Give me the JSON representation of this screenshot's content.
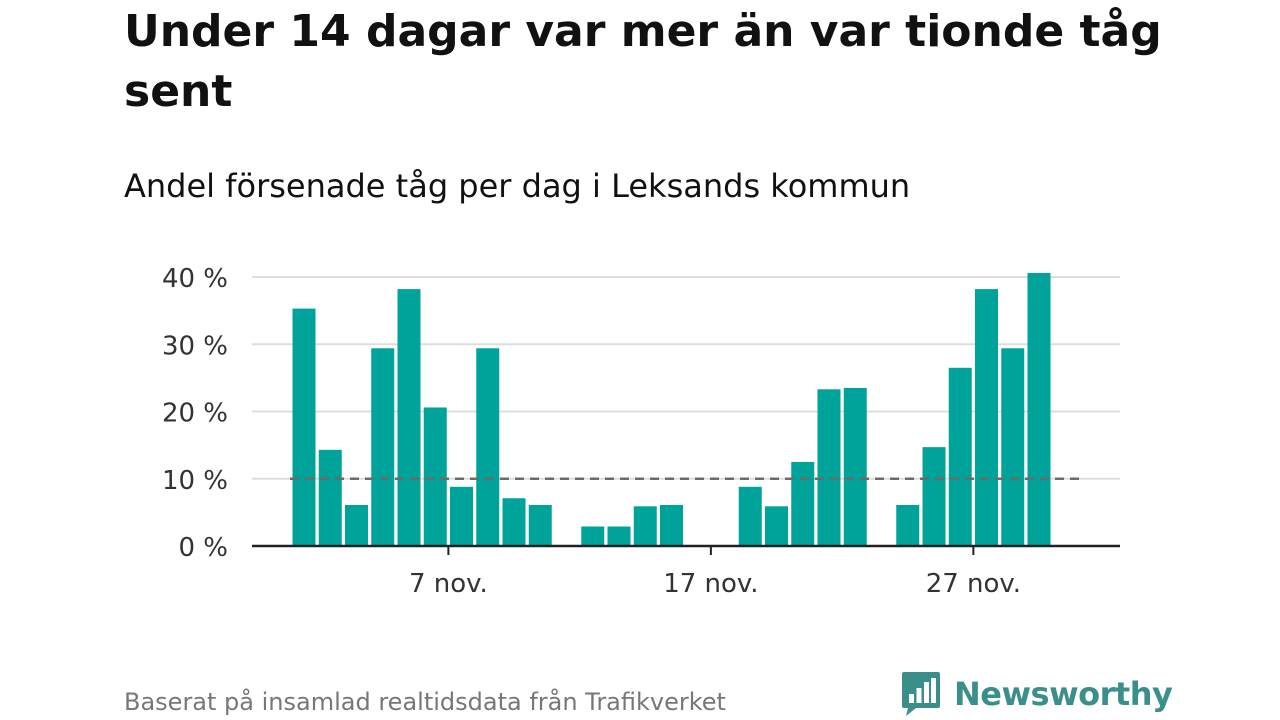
{
  "title": "Under 14 dagar var mer än var tionde tåg sent",
  "subtitle": "Andel försenade tåg per dag i Leksands kommun",
  "footer": "Baserat på insamlad realtidsdata från Trafikverket",
  "brand": {
    "name": "Newsworthy",
    "icon": "newsworthy-logo-icon",
    "color": "#3b8f8a"
  },
  "colors": {
    "bar": "#00a39a",
    "grid": "#dddddd",
    "reference": "#6b6b6b",
    "axis": "#222222"
  },
  "chart_data": {
    "type": "bar",
    "title": "",
    "xlabel": "",
    "ylabel": "",
    "ylim": [
      0,
      40
    ],
    "yticks": [
      {
        "value": 0,
        "label": "0 %"
      },
      {
        "value": 10,
        "label": "10 %"
      },
      {
        "value": 20,
        "label": "20 %"
      },
      {
        "value": 30,
        "label": "30 %"
      },
      {
        "value": 40,
        "label": "40 %"
      }
    ],
    "xticks": [
      {
        "day": 7,
        "label": "7 nov."
      },
      {
        "day": 17,
        "label": "17 nov."
      },
      {
        "day": 27,
        "label": "27 nov."
      }
    ],
    "reference_line": {
      "value": 10,
      "style": "dashed"
    },
    "grid": true,
    "days": [
      1,
      2,
      3,
      4,
      5,
      6,
      7,
      8,
      9,
      10,
      11,
      12,
      13,
      14,
      15,
      16,
      17,
      18,
      19,
      20,
      21,
      22,
      23,
      24,
      25,
      26,
      27,
      28,
      29,
      30
    ],
    "values": [
      35.3,
      14.3,
      6.1,
      29.4,
      38.2,
      20.6,
      8.8,
      29.4,
      7.1,
      6.1,
      null,
      2.9,
      2.9,
      5.9,
      6.1,
      null,
      null,
      8.8,
      5.9,
      12.5,
      23.3,
      23.5,
      null,
      6.1,
      14.7,
      26.5,
      38.2,
      29.4,
      40.6,
      null
    ]
  }
}
